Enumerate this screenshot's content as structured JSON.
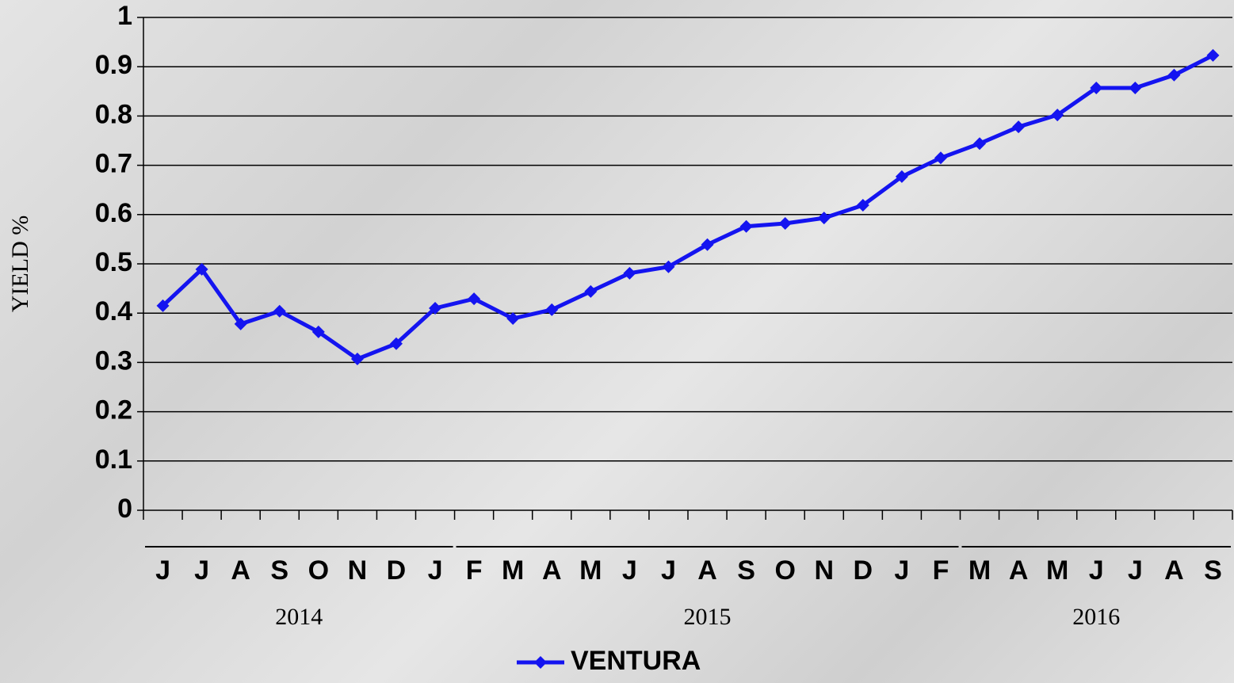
{
  "chart_data": {
    "type": "line",
    "y_label": "YIELD %",
    "categories": [
      "J",
      "J",
      "A",
      "S",
      "O",
      "N",
      "D",
      "J",
      "F",
      "M",
      "A",
      "M",
      "J",
      "J",
      "A",
      "S",
      "O",
      "N",
      "D",
      "J",
      "F",
      "M",
      "A",
      "M",
      "J",
      "J",
      "A",
      "S"
    ],
    "groups": [
      {
        "label": "2014",
        "count": 8
      },
      {
        "label": "2015",
        "count": 13
      },
      {
        "label": "2016",
        "count": 7
      }
    ],
    "series": [
      {
        "name": "VENTURA",
        "color": "#1414f0",
        "values": [
          0.415,
          0.489,
          0.378,
          0.404,
          0.362,
          0.307,
          0.338,
          0.41,
          0.429,
          0.389,
          0.407,
          0.444,
          0.481,
          0.494,
          0.539,
          0.576,
          0.582,
          0.593,
          0.619,
          0.677,
          0.715,
          0.744,
          0.778,
          0.802,
          0.857,
          0.857,
          0.883,
          0.923
        ]
      }
    ],
    "ylim": [
      0,
      1
    ],
    "yticks": [
      0,
      0.1,
      0.2,
      0.3,
      0.4,
      0.5,
      0.6,
      0.7,
      0.8,
      0.9,
      1
    ],
    "grid": true,
    "legend": "bottom"
  }
}
